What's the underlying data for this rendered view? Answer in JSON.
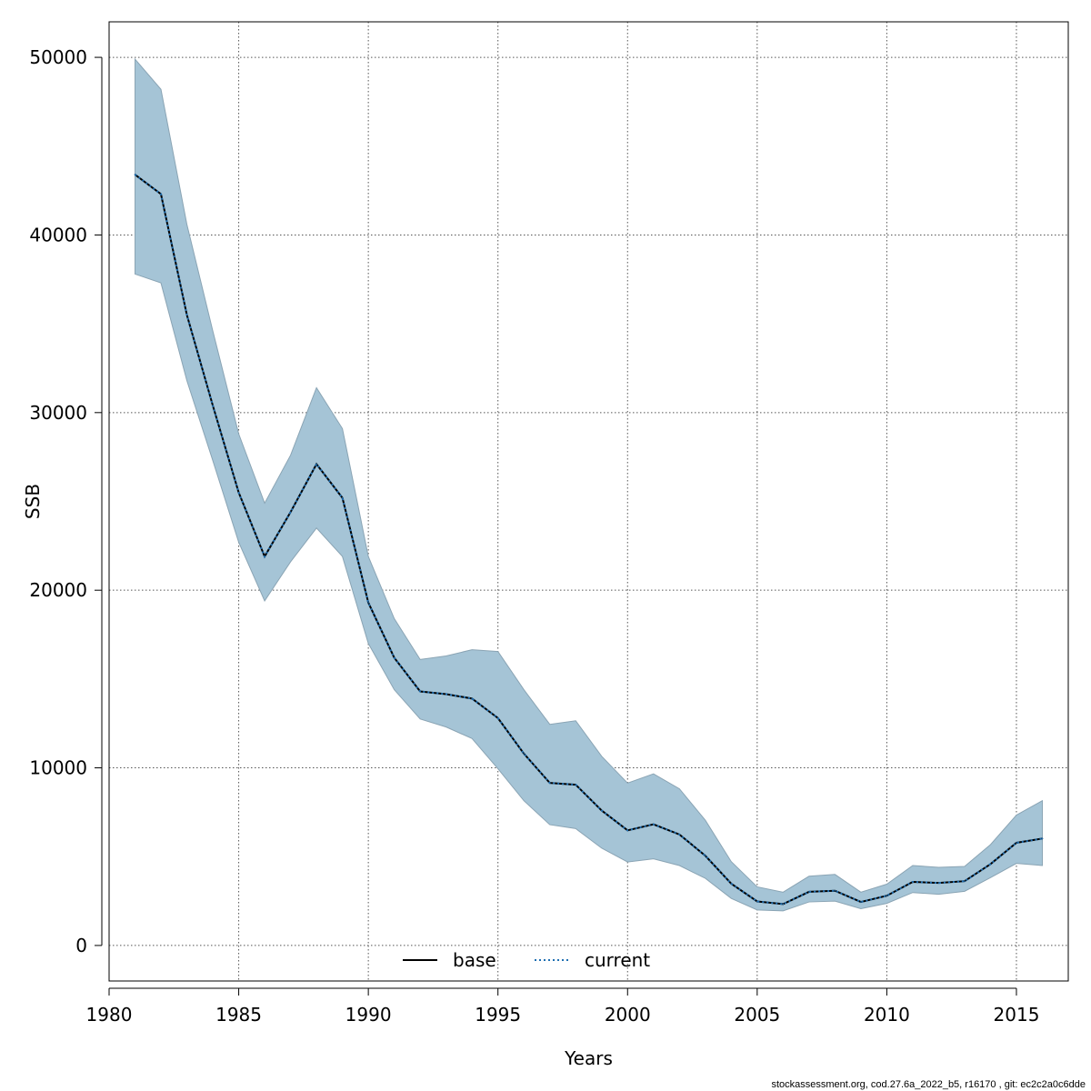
{
  "chart_data": {
    "type": "line",
    "title": "",
    "xlabel": "Years",
    "ylabel": "SSB",
    "xlim": [
      1980,
      2017
    ],
    "ylim": [
      -2000,
      52000
    ],
    "x_ticks": [
      1980,
      1985,
      1990,
      1995,
      2000,
      2005,
      2010,
      2015
    ],
    "y_ticks": [
      0,
      10000,
      20000,
      30000,
      40000,
      50000
    ],
    "grid": true,
    "legend_position": "bottom-center",
    "x": [
      1981,
      1982,
      1983,
      1984,
      1985,
      1986,
      1987,
      1988,
      1989,
      1990,
      1991,
      1992,
      1993,
      1994,
      1995,
      1996,
      1997,
      1998,
      1999,
      2000,
      2001,
      2002,
      2003,
      2004,
      2005,
      2006,
      2007,
      2008,
      2009,
      2010,
      2011,
      2012,
      2013,
      2014,
      2015,
      2016
    ],
    "series": [
      {
        "name": "base",
        "style": "solid",
        "color": "#000000",
        "values": [
          43400,
          42300,
          35500,
          30400,
          25500,
          21900,
          24400,
          27100,
          25200,
          19300,
          16200,
          14300,
          14150,
          13900,
          12800,
          10800,
          9150,
          9050,
          7600,
          6480,
          6820,
          6250,
          5050,
          3480,
          2480,
          2330,
          3020,
          3080,
          2450,
          2800,
          3580,
          3520,
          3620,
          4580,
          5780,
          6020
        ]
      },
      {
        "name": "current",
        "style": "dotted",
        "color": "#1f6fb2",
        "values": [
          43400,
          42300,
          35500,
          30400,
          25500,
          21900,
          24400,
          27100,
          25200,
          19300,
          16200,
          14300,
          14150,
          13900,
          12800,
          10800,
          9150,
          9050,
          7600,
          6480,
          6820,
          6250,
          5050,
          3480,
          2480,
          2330,
          3020,
          3080,
          2450,
          2800,
          3580,
          3520,
          3620,
          4580,
          5780,
          6020
        ]
      }
    ],
    "confidence_band": {
      "color": "#a5c4d6",
      "upper": [
        49900,
        48200,
        40600,
        34600,
        28800,
        24900,
        27600,
        31400,
        29100,
        21900,
        18400,
        16100,
        16300,
        16650,
        16550,
        14400,
        12450,
        12650,
        10650,
        9140,
        9660,
        8820,
        7050,
        4720,
        3300,
        3000,
        3900,
        4000,
        3000,
        3450,
        4500,
        4400,
        4450,
        5680,
        7340,
        8150
      ],
      "lower": [
        37800,
        37300,
        31800,
        27300,
        22700,
        19400,
        21600,
        23500,
        21900,
        17000,
        14400,
        12750,
        12300,
        11650,
        9950,
        8150,
        6800,
        6580,
        5480,
        4700,
        4880,
        4500,
        3780,
        2650,
        2000,
        1950,
        2450,
        2500,
        2070,
        2370,
        2980,
        2880,
        3050,
        3820,
        4620,
        4500
      ]
    }
  },
  "legend": {
    "items": [
      {
        "label": "base",
        "color": "#000000"
      },
      {
        "label": "current",
        "color": "#1f6fb2"
      }
    ]
  },
  "footer": {
    "text": "stockassessment.org, cod.27.6a_2022_b5, r16170 , git: ec2c2a0c6dde"
  }
}
